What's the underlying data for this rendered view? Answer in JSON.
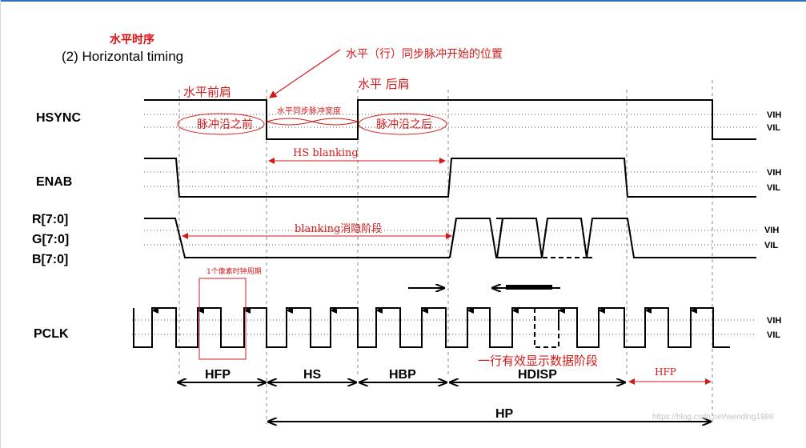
{
  "title": {
    "cn": "水平时序",
    "en": "(2) Horizontal timing"
  },
  "signals": {
    "hsync": "HSYNC",
    "enab": "ENAB",
    "r": "R[7:0]",
    "g": "G[7:0]",
    "b": "B[7:0]",
    "pclk": "PCLK"
  },
  "levels": {
    "vih": "VIH",
    "vil": "VIL"
  },
  "annotations": {
    "sync_start_position": "水平（行）同步脉冲开始的位置",
    "front_porch": "水平前肩",
    "back_porch": "水平 后肩",
    "sync_pulse_width": "水平同步脉冲宽度",
    "before_pulse_edge": "脉冲沿之前",
    "after_pulse_edge": "脉冲沿之后",
    "hs_blanking": "HS blanking",
    "blanking_phase": "blanking消隐阶段",
    "pixel_clock_period": "1个像素时钟周期",
    "active_display_phase": "一行有效显示数据阶段",
    "hfp_right": "HFP"
  },
  "segments": {
    "hfp": "HFP",
    "hs": "HS",
    "hbp": "HBP",
    "hdisp": "HDISP",
    "hp": "HP"
  },
  "watermark": "https://blog.csdn.net/wending1986",
  "colors": {
    "annotation_red": "#d21a1a",
    "frame_blue": "#2e6fb8"
  }
}
